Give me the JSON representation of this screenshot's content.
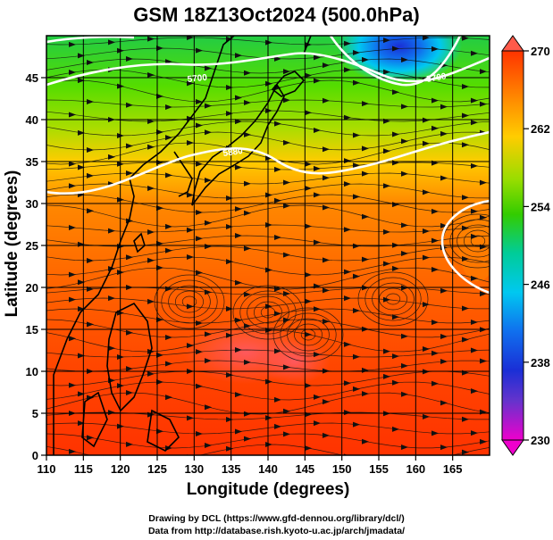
{
  "title": "GSM 18Z13Oct2024 (500.0hPa)",
  "credits": [
    "Drawing by DCL (https://www.gfd-dennou.org/library/dcl/)",
    "Data from http://database.rish.kyoto-u.ac.jp/arch/jmadata/"
  ],
  "map": {
    "xlabel": "Longitude (degrees)",
    "ylabel": "Latitude  (degrees)",
    "lon_range": [
      110,
      170
    ],
    "lat_range": [
      0,
      50
    ],
    "lon_ticks": [
      "110",
      "115",
      "120",
      "125",
      "130",
      "135",
      "140",
      "145",
      "150",
      "155",
      "160",
      "165"
    ],
    "lat_ticks": [
      "0",
      "5",
      "10",
      "15",
      "20",
      "25",
      "30",
      "35",
      "40",
      "45"
    ],
    "contour_labels": [
      "5700",
      "5700",
      "5880"
    ],
    "field": "temperature",
    "colorbar": {
      "min": 230,
      "max": 270,
      "ticks": [
        "270",
        "262",
        "254",
        "246",
        "238",
        "230"
      ]
    }
  },
  "colors": {
    "cold": "#1a2fd6",
    "cool": "#00c8f0",
    "mid": "#33cc00",
    "warm": "#ff9900",
    "hot": "#ff3300",
    "contour": "#ffffff"
  }
}
